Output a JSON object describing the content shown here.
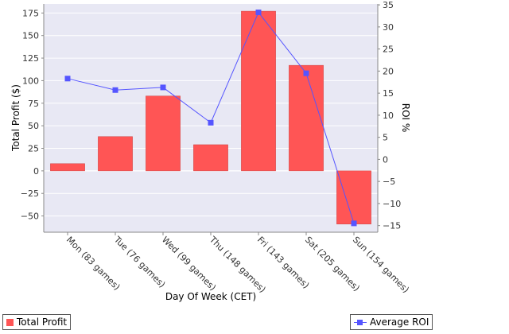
{
  "chart_data": {
    "type": "bar",
    "xlabel": "Day Of Week (CET)",
    "ylabel": "Total Profit ($)",
    "y2label": "ROI %",
    "categories": [
      "Mon (83 games)",
      "Tue (76 games)",
      "Wed (99 games)",
      "Thu (148 games)",
      "Fri (143 games)",
      "Sat (205 games)",
      "Sun (154 games)"
    ],
    "series": [
      {
        "name": "Total Profit",
        "kind": "bar",
        "axis": "left",
        "color": "#ff5555",
        "values": [
          8,
          38,
          83,
          29,
          177,
          117,
          -59
        ]
      },
      {
        "name": "Average ROI",
        "kind": "line",
        "axis": "right",
        "color": "#5555ff",
        "values": [
          18.3,
          15.7,
          16.3,
          8.3,
          33.3,
          19.5,
          -14.5
        ]
      }
    ],
    "ylim": [
      -68,
      185
    ],
    "y2lim": [
      -16.5,
      35.2
    ],
    "yticks": [
      -50,
      -25,
      0,
      25,
      50,
      75,
      100,
      125,
      150,
      175
    ],
    "y2ticks": [
      -15,
      -10,
      -5,
      0,
      5,
      10,
      15,
      20,
      25,
      30,
      35
    ],
    "grid": true,
    "legend_placement": "bottom"
  },
  "legend": {
    "left_label": "Total Profit",
    "right_label": "Average ROI"
  }
}
